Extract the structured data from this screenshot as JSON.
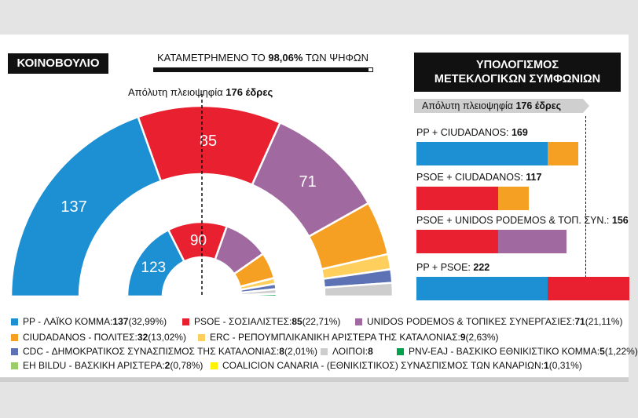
{
  "headers": {
    "parliament": "ΚΟΙΝΟΒΟΥΛΙΟ",
    "counted_prefix": "ΚΑΤΑΜΕΤΡΗΜΕΝΟ ΤΟ ",
    "counted_value": "98,06%",
    "counted_suffix": " ΤΩΝ ΨΗΦΩΝ",
    "majority_prefix": "Απόλυτη πλειοψηφία ",
    "majority_value": "176 έδρες",
    "panel_title_1": "ΥΠΟΛΟΓΙΣΜΟΣ",
    "panel_title_2": "ΜΕΤΕΚΛΟΓΙΚΩΝ ΣΥΜΦΩΝΙΩΝ",
    "panel_majority_prefix": "Απόλυτη πλειοψηφία ",
    "panel_majority_value": "176 έδρες"
  },
  "colors": {
    "pp": "#1d8fd3",
    "psoe": "#e8202f",
    "podemos": "#a06aa1",
    "ciudadanos": "#f5a023",
    "erc": "#ffcf5e",
    "cdc": "#5c72b5",
    "others": "#cdcdcd",
    "pnv": "#00a14b",
    "bildu": "#9acd6a",
    "cc": "#fff200",
    "dark": "#111111",
    "podemos_local": "#e0567e"
  },
  "chart_data": [
    {
      "type": "pie",
      "name": "outer",
      "slices": [
        {
          "key": "pp",
          "value": 137,
          "label": "137"
        },
        {
          "key": "psoe",
          "value": 85,
          "label": "85"
        },
        {
          "key": "podemos",
          "value": 71,
          "label": "71"
        },
        {
          "key": "ciudadanos",
          "value": 32,
          "label": ""
        },
        {
          "key": "erc",
          "value": 9,
          "label": ""
        },
        {
          "key": "cdc",
          "value": 8,
          "label": ""
        },
        {
          "key": "others",
          "value": 8,
          "label": ""
        }
      ]
    },
    {
      "type": "pie",
      "name": "inner",
      "slices": [
        {
          "key": "pp",
          "value": 123,
          "label": "123"
        },
        {
          "key": "psoe",
          "value": 90,
          "label": "90"
        },
        {
          "key": "podemos",
          "value": 69,
          "label": ""
        },
        {
          "key": "ciudadanos",
          "value": 40,
          "label": ""
        },
        {
          "key": "erc",
          "value": 9,
          "label": ""
        },
        {
          "key": "cdc",
          "value": 8,
          "label": ""
        },
        {
          "key": "others",
          "value": 7,
          "label": ""
        },
        {
          "key": "pnv",
          "value": 4,
          "label": ""
        }
      ]
    },
    {
      "type": "bar",
      "name": "coalitions",
      "xlim": [
        0,
        240
      ],
      "majority": 176,
      "combos": [
        {
          "prefix": "PP + CIUDADANOS: ",
          "total": "169",
          "segments": [
            {
              "key": "pp",
              "value": 137
            },
            {
              "key": "ciudadanos",
              "value": 32
            }
          ]
        },
        {
          "prefix": "PSOE + CIUDADANOS: ",
          "total": "117",
          "segments": [
            {
              "key": "psoe",
              "value": 85
            },
            {
              "key": "ciudadanos",
              "value": 32
            }
          ]
        },
        {
          "prefix": "PSOE + UNIDOS PODEMOS & ΤΟΠ. ΣΥΝ.: ",
          "total": "156",
          "segments": [
            {
              "key": "psoe",
              "value": 85
            },
            {
              "key": "podemos",
              "value": 71
            }
          ]
        },
        {
          "prefix": "PP + PSOE: ",
          "total": "222",
          "segments": [
            {
              "key": "pp",
              "value": 137
            },
            {
              "key": "psoe",
              "value": 85
            }
          ]
        }
      ]
    }
  ],
  "legend": [
    {
      "key": "pp",
      "text": "PP - ΛΑΪΚΟ ΚΟΜΜΑ: ",
      "seats": "137",
      "pct": " (32,99%)"
    },
    {
      "key": "psoe",
      "text": "PSOE - ΣΟΣΙΑΛΙΣΤΕΣ: ",
      "seats": "85",
      "pct": " (22,71%)"
    },
    {
      "key": "podemos",
      "text": "UNIDOS PODEMOS & ΤΟΠΙΚΕΣ ΣΥΝΕΡΓΑΣΙΕΣ: ",
      "seats": "71",
      "pct": " (21,11%)"
    },
    {
      "key": "ciudadanos",
      "text": "CIUDADANOS - ΠΟΛΙΤΕΣ: ",
      "seats": "32",
      "pct": " (13,02%)"
    },
    {
      "key": "erc",
      "text": "ERC - ΡΕΠΟΥΜΠΛΙΚΑΝΙΚΗ ΑΡΙΣΤΕΡΑ ΤΗΣ ΚΑΤΑΛΟΝΙΑΣ: ",
      "seats": "9",
      "pct": " (2,63%)"
    },
    {
      "key": "cdc",
      "text": "CDC - ΔΗΜΟΚΡΑΤΙΚΟΣ ΣΥΝΑΣΠΙΣΜΟΣ ΤΗΣ ΚΑΤΑΛΟΝΙΑΣ: ",
      "seats": "8",
      "pct": " (2,01%)"
    },
    {
      "key": "others",
      "text": "ΛΟΙΠΟΙ: ",
      "seats": "8",
      "pct": ""
    },
    {
      "key": "pnv",
      "text": "PNV-EAJ - ΒΑΣΚΙΚΟ ΕΘΝΙΚΙΣΤΙΚΟ ΚΟΜΜΑ: ",
      "seats": "5",
      "pct": " (1,22%)"
    },
    {
      "key": "bildu",
      "text": "EH BILDU - ΒΑΣΚΙΚΗ ΑΡΙΣΤΕΡΑ: ",
      "seats": "2",
      "pct": " (0,78%)"
    },
    {
      "key": "cc",
      "text": "COALICION CANARIA - (ΕΘΝΙΚΙΣΤΙΚΟΣ) ΣΥΝΑΣΠΙΣΜΟΣ ΤΩΝ ΚΑΝΑΡΙΩΝ: ",
      "seats": "1",
      "pct": " (0,31%)"
    }
  ]
}
